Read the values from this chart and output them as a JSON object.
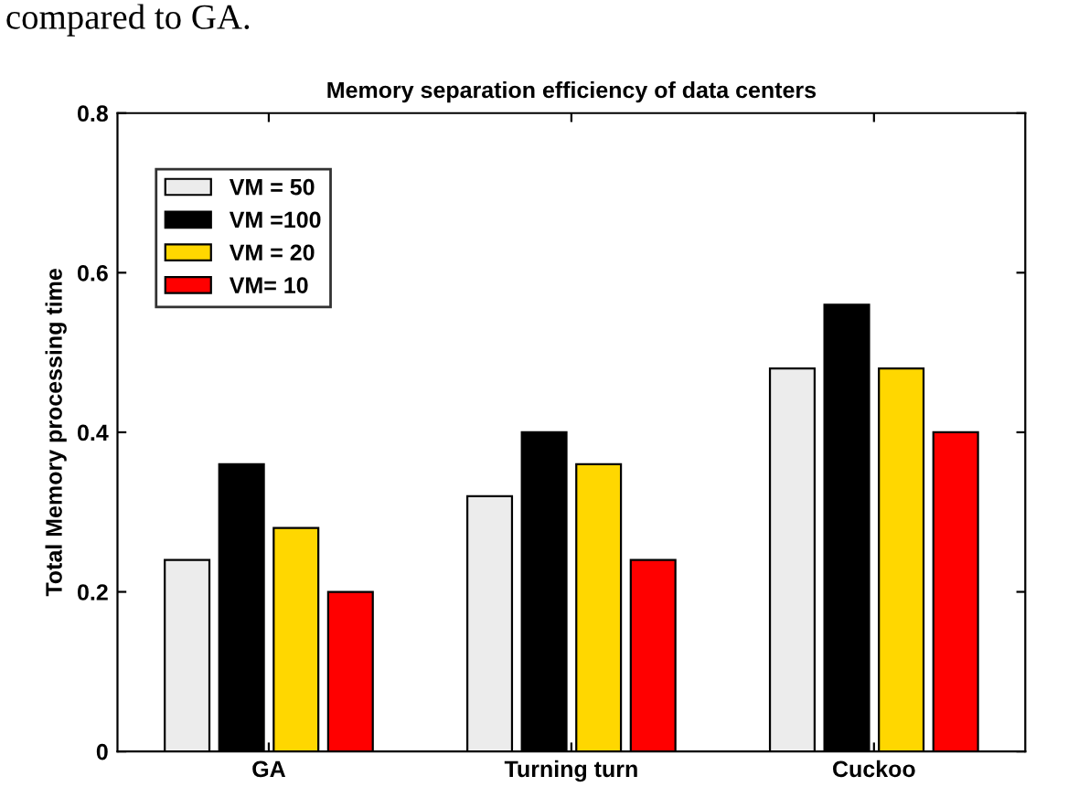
{
  "chart_data": {
    "type": "bar",
    "title": "Memory separation efficiency of data centers",
    "ylabel": "Total Memory processing time",
    "annotations": [
      "compared to GA."
    ],
    "categories": [
      "GA",
      "Turning turn",
      "Cuckoo"
    ],
    "series": [
      {
        "name": "VM = 50",
        "color": "#ececec",
        "values": [
          0.24,
          0.32,
          0.48
        ]
      },
      {
        "name": "VM =100",
        "color": "#000000",
        "values": [
          0.36,
          0.4,
          0.56
        ]
      },
      {
        "name": "VM = 20",
        "color": "#ffd700",
        "values": [
          0.28,
          0.36,
          0.48
        ]
      },
      {
        "name": "VM= 10",
        "color": "#ff0000",
        "values": [
          0.2,
          0.24,
          0.4
        ]
      }
    ],
    "ylim": [
      0,
      0.8
    ],
    "yticks": [
      0,
      0.2,
      0.4,
      0.6,
      0.8
    ],
    "grid": false,
    "legend": "top left"
  }
}
